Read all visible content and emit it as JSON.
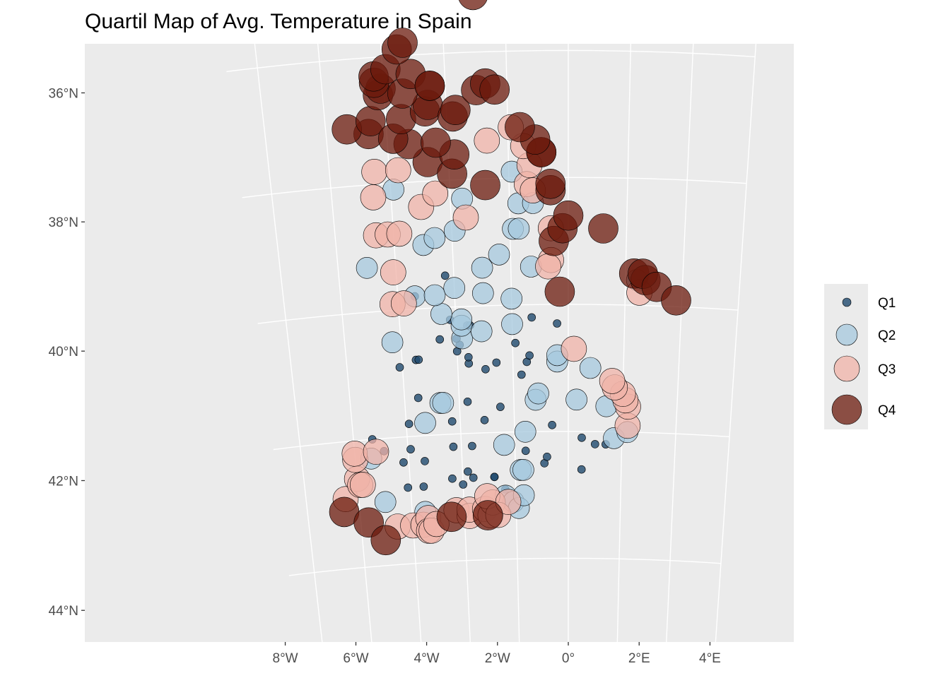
{
  "chart_data": {
    "type": "scatter",
    "title": "Quartil Map of Avg. Temperature in Spain",
    "xlabel": "",
    "ylabel": "",
    "xlim": [
      -9.2,
      4.3
    ],
    "ylim": [
      34.7,
      44.2
    ],
    "x_ticks": [
      {
        "value": -8,
        "label": "8°W"
      },
      {
        "value": -6,
        "label": "6°W"
      },
      {
        "value": -4,
        "label": "4°W"
      },
      {
        "value": -2,
        "label": "2°W"
      },
      {
        "value": 0,
        "label": "0°"
      },
      {
        "value": 2,
        "label": "2°E"
      },
      {
        "value": 4,
        "label": "4°E"
      }
    ],
    "y_ticks": [
      {
        "value": 36,
        "label": "36°N"
      },
      {
        "value": 38,
        "label": "38°N"
      },
      {
        "value": 40,
        "label": "40°N"
      },
      {
        "value": 42,
        "label": "42°N"
      },
      {
        "value": 44,
        "label": "44°N"
      }
    ],
    "grid": true,
    "legend_position": "right",
    "colors": {
      "panel": "#ebebeb",
      "grid": "#ffffff",
      "Q1": "#1f4a6e",
      "Q2": "#a6c8de",
      "Q3": "#f0b3a8",
      "Q4": "#6b1a0c"
    },
    "series": [
      {
        "name": "Q1",
        "points": [
          [
            -7.3,
            42.0
          ],
          [
            -6.9,
            42.2
          ],
          [
            -6.2,
            42.4
          ],
          [
            -6.1,
            42.8
          ],
          [
            -5.9,
            42.2
          ],
          [
            -5.9,
            41.8
          ],
          [
            -5.5,
            42.8
          ],
          [
            -5.4,
            42.4
          ],
          [
            -5.5,
            41.4
          ],
          [
            -6.1,
            40.9
          ],
          [
            -5.5,
            40.8
          ],
          [
            -5.4,
            40.8
          ],
          [
            -4.4,
            42.7
          ],
          [
            -4.0,
            42.8
          ],
          [
            -3.8,
            42.6
          ],
          [
            -3.6,
            42.7
          ],
          [
            -4.3,
            42.2
          ],
          [
            -3.6,
            42.2
          ],
          [
            -4.3,
            41.8
          ],
          [
            -3.1,
            41.8
          ],
          [
            -3.7,
            41.5
          ],
          [
            -2.5,
            41.6
          ],
          [
            -2.8,
            42.7
          ],
          [
            -2.8,
            42.7
          ],
          [
            -2.4,
            42.9
          ],
          [
            -1.6,
            42.3
          ],
          [
            -0.9,
            42.5
          ],
          [
            -0.8,
            42.4
          ],
          [
            -0.6,
            41.9
          ],
          [
            0.5,
            42.6
          ],
          [
            0.5,
            42.1
          ],
          [
            1.0,
            42.2
          ],
          [
            1.4,
            42.2
          ],
          [
            -1.7,
            41.1
          ],
          [
            -1.5,
            40.9
          ],
          [
            -1.4,
            40.8
          ],
          [
            -3.0,
            41.0
          ],
          [
            -3.6,
            40.9
          ],
          [
            -3.6,
            40.8
          ],
          [
            -4.0,
            40.7
          ],
          [
            -3.9,
            40.6
          ],
          [
            -4.0,
            40.5
          ],
          [
            -4.6,
            40.5
          ],
          [
            -4.2,
            40.2
          ],
          [
            -3.6,
            40.3
          ],
          [
            -3.5,
            40.3
          ],
          [
            -2.6,
            40.9
          ],
          [
            -1.9,
            40.6
          ],
          [
            -1.3,
            40.2
          ],
          [
            -0.4,
            40.3
          ],
          [
            -4.3,
            39.5
          ],
          [
            -5.4,
            39.8
          ]
        ]
      },
      {
        "name": "Q2",
        "points": [
          [
            -7.0,
            43.0
          ],
          [
            -7.4,
            42.3
          ],
          [
            -5.5,
            43.2
          ],
          [
            -2.4,
            43.0
          ],
          [
            -2.1,
            43.1
          ],
          [
            -1.9,
            43.2
          ],
          [
            -1.7,
            43.0
          ],
          [
            -1.8,
            42.6
          ],
          [
            -1.7,
            42.6
          ],
          [
            -2.4,
            42.2
          ],
          [
            -1.6,
            42.0
          ],
          [
            -1.2,
            41.5
          ],
          [
            -1.1,
            41.4
          ],
          [
            0.3,
            41.5
          ],
          [
            1.4,
            41.6
          ],
          [
            1.7,
            42.1
          ],
          [
            2.2,
            42.0
          ],
          [
            0.8,
            41.0
          ],
          [
            -0.4,
            40.9
          ],
          [
            -0.4,
            40.8
          ],
          [
            -5.3,
            41.8
          ],
          [
            -4.7,
            41.5
          ],
          [
            -4.6,
            41.5
          ],
          [
            -6.3,
            40.5
          ],
          [
            -3.8,
            40.5
          ],
          [
            -3.8,
            40.3
          ],
          [
            -3.8,
            40.2
          ],
          [
            -3.1,
            40.4
          ],
          [
            -2.0,
            40.3
          ],
          [
            -4.5,
            40.1
          ],
          [
            -5.4,
            39.8
          ],
          [
            -4.7,
            39.8
          ],
          [
            -4.0,
            39.7
          ],
          [
            -3.0,
            39.8
          ],
          [
            -2.0,
            39.9
          ],
          [
            -7.0,
            39.3
          ],
          [
            -3.0,
            39.4
          ],
          [
            -2.4,
            39.2
          ],
          [
            -1.3,
            39.4
          ],
          [
            -5.0,
            39.0
          ],
          [
            -4.6,
            38.9
          ],
          [
            -3.9,
            38.8
          ],
          [
            -1.9,
            38.8
          ],
          [
            -1.7,
            38.8
          ],
          [
            -1.7,
            38.4
          ],
          [
            -1.2,
            38.4
          ],
          [
            -3.6,
            38.3
          ],
          [
            -5.9,
            38.1
          ],
          [
            -1.9,
            37.9
          ],
          [
            2.4,
            39.6
          ]
        ]
      },
      {
        "name": "Q3",
        "points": [
          [
            -8.5,
            42.9
          ],
          [
            -8.0,
            42.6
          ],
          [
            -7.9,
            42.7
          ],
          [
            -7.8,
            42.7
          ],
          [
            -8.0,
            42.3
          ],
          [
            -8.0,
            42.2
          ],
          [
            -7.2,
            42.2
          ],
          [
            -6.6,
            43.4
          ],
          [
            -6.0,
            43.4
          ],
          [
            -5.6,
            43.4
          ],
          [
            -5.4,
            43.3
          ],
          [
            -5.4,
            43.5
          ],
          [
            -5.3,
            43.5
          ],
          [
            -5.1,
            43.4
          ],
          [
            -4.3,
            43.2
          ],
          [
            -3.8,
            43.3
          ],
          [
            -3.8,
            43.2
          ],
          [
            -3.2,
            43.2
          ],
          [
            -3.0,
            43.3
          ],
          [
            -2.9,
            43.1
          ],
          [
            -3.1,
            43.0
          ],
          [
            -2.7,
            43.3
          ],
          [
            -2.3,
            43.1
          ],
          [
            2.2,
            41.9
          ],
          [
            2.2,
            41.6
          ],
          [
            2.1,
            41.5
          ],
          [
            2.0,
            41.4
          ],
          [
            1.7,
            41.3
          ],
          [
            1.6,
            41.2
          ],
          [
            0.2,
            40.7
          ],
          [
            -6.2,
            39.9
          ],
          [
            -5.8,
            39.9
          ],
          [
            -6.1,
            39.4
          ],
          [
            -6.6,
            38.8
          ],
          [
            -6.2,
            38.8
          ],
          [
            -5.8,
            38.8
          ],
          [
            -0.6,
            39.3
          ],
          [
            -0.7,
            39.4
          ],
          [
            -0.6,
            38.8
          ],
          [
            -6.6,
            38.2
          ],
          [
            -6.5,
            37.8
          ],
          [
            -5.7,
            37.8
          ],
          [
            -5.0,
            38.4
          ],
          [
            -4.5,
            38.2
          ],
          [
            -3.5,
            38.6
          ],
          [
            -1.4,
            38.1
          ],
          [
            -1.2,
            38.2
          ],
          [
            -1.3,
            37.8
          ],
          [
            -1.5,
            37.5
          ],
          [
            -2.7,
            37.4
          ],
          [
            -1.9,
            37.2
          ],
          [
            2.5,
            39.8
          ]
        ]
      },
      {
        "name": "Q4",
        "points": [
          [
            -8.6,
            43.1
          ],
          [
            -7.7,
            43.3
          ],
          [
            -7.1,
            43.6
          ],
          [
            -4.5,
            43.3
          ],
          [
            -3.1,
            43.3
          ],
          [
            -0.3,
            39.8
          ],
          [
            -0.5,
            39.0
          ],
          [
            -0.2,
            38.8
          ],
          [
            0.0,
            38.6
          ],
          [
            1.2,
            38.8
          ],
          [
            -0.6,
            38.2
          ],
          [
            -0.6,
            38.1
          ],
          [
            -0.9,
            37.6
          ],
          [
            -0.9,
            37.6
          ],
          [
            -1.1,
            37.4
          ],
          [
            -1.6,
            37.2
          ],
          [
            -2.8,
            38.1
          ],
          [
            -4.7,
            37.7
          ],
          [
            -3.9,
            37.9
          ],
          [
            -3.8,
            37.6
          ],
          [
            -5.3,
            37.4
          ],
          [
            -4.4,
            37.4
          ],
          [
            -6.6,
            37.2
          ],
          [
            -7.3,
            37.1
          ],
          [
            -6.5,
            37.0
          ],
          [
            -5.8,
            37.3
          ],
          [
            -5.5,
            37.0
          ],
          [
            -4.7,
            36.9
          ],
          [
            -4.6,
            36.8
          ],
          [
            -3.8,
            37.0
          ],
          [
            -3.7,
            36.9
          ],
          [
            -3.0,
            36.6
          ],
          [
            -2.7,
            36.5
          ],
          [
            -2.4,
            36.6
          ],
          [
            -6.2,
            36.6
          ],
          [
            -6.1,
            36.5
          ],
          [
            -6.3,
            36.4
          ],
          [
            -6.3,
            36.3
          ],
          [
            -5.9,
            36.2
          ],
          [
            -5.4,
            36.6
          ],
          [
            -5.1,
            36.3
          ],
          [
            -4.5,
            36.5
          ],
          [
            -4.5,
            36.5
          ],
          [
            -5.5,
            35.9
          ],
          [
            -5.3,
            35.8
          ],
          [
            -3.0,
            35.1
          ],
          [
            2.3,
            39.5
          ],
          [
            2.7,
            39.6
          ],
          [
            2.6,
            39.5
          ],
          [
            3.1,
            39.7
          ],
          [
            3.8,
            39.9
          ]
        ]
      }
    ]
  }
}
